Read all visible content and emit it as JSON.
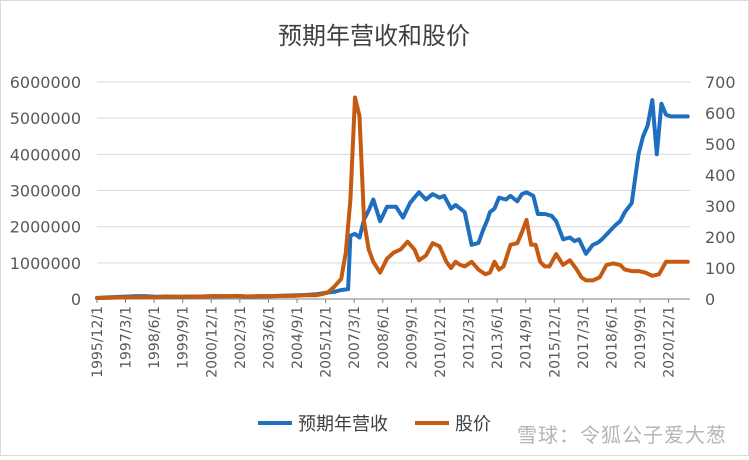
{
  "watermark": "雪球：令狐公子爱大葱",
  "chart_data": {
    "type": "line",
    "title": "预期年营收和股价",
    "y_left": {
      "min": 0,
      "max": 6000000,
      "ticks": [
        "0",
        "1000000",
        "2000000",
        "3000000",
        "4000000",
        "5000000",
        "6000000"
      ]
    },
    "y_right": {
      "min": 0,
      "max": 700,
      "ticks": [
        "0",
        "100",
        "200",
        "300",
        "400",
        "500",
        "600",
        "700"
      ]
    },
    "x_tick_labels": [
      "1995/12/1",
      "1997/3/1",
      "1998/6/1",
      "1999/9/1",
      "2000/12/1",
      "2002/3/1",
      "2003/6/1",
      "2004/9/1",
      "2005/12/1",
      "2007/3/1",
      "2008/6/1",
      "2009/9/1",
      "2010/12/1",
      "2012/3/1",
      "2013/6/1",
      "2014/9/1",
      "2015/12/1",
      "2017/3/1",
      "2018/6/1",
      "2019/9/1",
      "2020/12/1"
    ],
    "x_range": [
      1995.92,
      2021.85
    ],
    "legend_position": "bottom",
    "grid": "horizontal",
    "colors": {
      "revenue": "#1f6fbf",
      "price": "#c55a11",
      "grid": "#d9d9d9",
      "axis": "#808080"
    },
    "series": [
      {
        "name": "预期年营收",
        "axis": "left",
        "x": [
          1995.92,
          1996.5,
          1997.0,
          1997.5,
          1998.0,
          1998.5,
          1999.0,
          1999.5,
          2000.0,
          2000.5,
          2001.0,
          2001.5,
          2002.0,
          2002.5,
          2003.0,
          2003.5,
          2004.0,
          2004.5,
          2005.0,
          2005.5,
          2006.0,
          2006.3,
          2006.6,
          2006.9,
          2007.0,
          2007.2,
          2007.4,
          2007.6,
          2007.8,
          2008.0,
          2008.3,
          2008.6,
          2008.8,
          2009.0,
          2009.3,
          2009.6,
          2009.8,
          2010.0,
          2010.3,
          2010.6,
          2010.9,
          2011.1,
          2011.4,
          2011.6,
          2011.8,
          2012.0,
          2012.3,
          2012.6,
          2012.8,
          2013.0,
          2013.1,
          2013.3,
          2013.5,
          2013.8,
          2014.0,
          2014.3,
          2014.5,
          2014.7,
          2015.0,
          2015.2,
          2015.5,
          2015.8,
          2016.0,
          2016.3,
          2016.6,
          2016.8,
          2017.0,
          2017.3,
          2017.6,
          2017.8,
          2018.0,
          2018.3,
          2018.6,
          2018.8,
          2019.0,
          2019.3,
          2019.6,
          2019.8,
          2020.0,
          2020.2,
          2020.4,
          2020.6,
          2020.8,
          2021.0,
          2021.2,
          2021.4,
          2021.6,
          2021.75
        ],
        "y": [
          30000,
          50000,
          60000,
          75000,
          80000,
          60000,
          70000,
          60000,
          70000,
          70000,
          80000,
          75000,
          80000,
          70000,
          75000,
          80000,
          90000,
          100000,
          110000,
          130000,
          180000,
          200000,
          250000,
          270000,
          1750000,
          1800000,
          1700000,
          2200000,
          2450000,
          2750000,
          2150000,
          2550000,
          2550000,
          2550000,
          2250000,
          2650000,
          2800000,
          2950000,
          2750000,
          2900000,
          2800000,
          2850000,
          2500000,
          2600000,
          2500000,
          2400000,
          1500000,
          1550000,
          1900000,
          2200000,
          2400000,
          2500000,
          2800000,
          2750000,
          2850000,
          2700000,
          2900000,
          2950000,
          2850000,
          2350000,
          2350000,
          2300000,
          2150000,
          1650000,
          1700000,
          1600000,
          1650000,
          1250000,
          1500000,
          1550000,
          1650000,
          1850000,
          2050000,
          2150000,
          2400000,
          2650000,
          4000000,
          4500000,
          4800000,
          5500000,
          4000000,
          5400000,
          5100000,
          5050000,
          5050000,
          5050000,
          5050000,
          5050000
        ],
        "label": "预期年营收"
      },
      {
        "name": "股价",
        "axis": "right",
        "x": [
          1995.92,
          1996.5,
          1997.0,
          1997.5,
          1998.0,
          1998.5,
          1999.0,
          1999.5,
          2000.0,
          2000.5,
          2001.0,
          2001.5,
          2002.0,
          2002.5,
          2003.0,
          2003.5,
          2004.0,
          2004.5,
          2005.0,
          2005.5,
          2006.0,
          2006.3,
          2006.6,
          2006.8,
          2007.0,
          2007.2,
          2007.4,
          2007.6,
          2007.8,
          2008.0,
          2008.3,
          2008.6,
          2008.9,
          2009.2,
          2009.5,
          2009.8,
          2010.0,
          2010.3,
          2010.6,
          2010.9,
          2011.2,
          2011.4,
          2011.6,
          2011.8,
          2012.0,
          2012.3,
          2012.6,
          2012.9,
          2013.1,
          2013.3,
          2013.5,
          2013.7,
          2014.0,
          2014.3,
          2014.5,
          2014.7,
          2014.9,
          2015.1,
          2015.3,
          2015.5,
          2015.7,
          2016.0,
          2016.3,
          2016.6,
          2016.9,
          2017.1,
          2017.3,
          2017.6,
          2017.9,
          2018.2,
          2018.5,
          2018.8,
          2019.0,
          2019.3,
          2019.6,
          2019.9,
          2020.2,
          2020.5,
          2020.8,
          2021.1,
          2021.4,
          2021.6,
          2021.75
        ],
        "y": [
          3,
          4,
          5,
          5,
          6,
          6,
          7,
          7,
          8,
          8,
          9,
          9,
          10,
          8,
          9,
          9,
          10,
          10,
          12,
          12,
          20,
          40,
          65,
          150,
          320,
          650,
          590,
          250,
          160,
          120,
          85,
          130,
          150,
          160,
          185,
          160,
          125,
          140,
          180,
          170,
          120,
          100,
          120,
          110,
          105,
          120,
          95,
          80,
          85,
          120,
          95,
          105,
          175,
          180,
          215,
          255,
          175,
          175,
          120,
          105,
          105,
          145,
          110,
          125,
          95,
          70,
          60,
          60,
          70,
          110,
          115,
          110,
          95,
          90,
          90,
          85,
          75,
          80,
          120,
          120,
          120,
          120,
          120
        ]
      }
    ]
  }
}
